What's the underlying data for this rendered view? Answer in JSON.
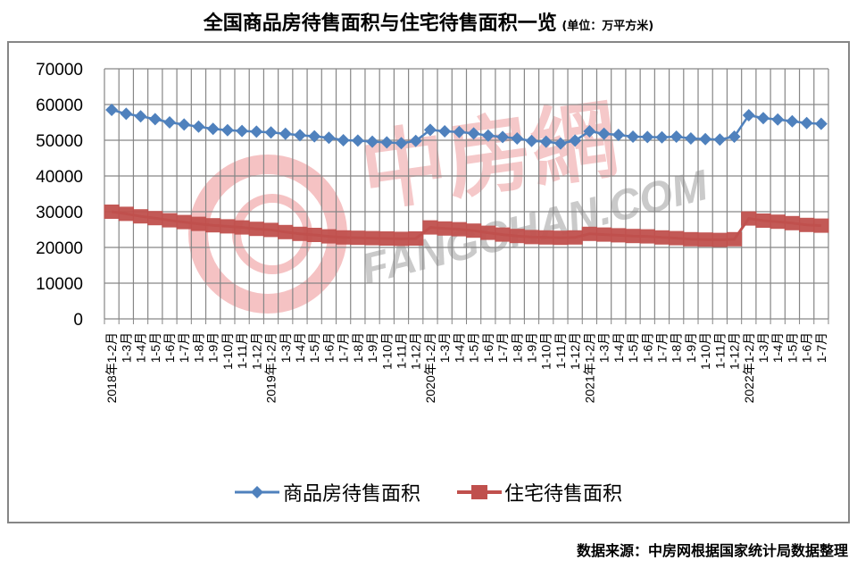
{
  "header": {
    "title": "全国商品房待售面积与住宅待售面积一览",
    "unit": "(单位：万平方米)"
  },
  "footer": {
    "source": "数据来源：中房网根据国家统计局数据整理"
  },
  "watermark": {
    "logo_text": "中房網",
    "domain_text": "FANGCHAN.COM"
  },
  "colors": {
    "series1": "#4F81BD",
    "series2": "#C0504D",
    "grid": "#868686",
    "watermark_red": "#E8787A",
    "watermark_gray": "#A0A0A0"
  },
  "chart_data": {
    "type": "line",
    "title": "全国商品房待售面积与住宅待售面积一览 (单位：万平方米)",
    "xlabel": "",
    "ylabel": "",
    "ylim": [
      0,
      70000
    ],
    "yticks": [
      0,
      10000,
      20000,
      30000,
      40000,
      50000,
      60000,
      70000
    ],
    "grid": true,
    "legend_position": "bottom",
    "categories": [
      "2018年1-2月",
      "1-3月",
      "1-4月",
      "1-5月",
      "1-6月",
      "1-7月",
      "1-8月",
      "1-9月",
      "1-10月",
      "1-11月",
      "1-12月",
      "2019年1-2月",
      "1-3月",
      "1-4月",
      "1-5月",
      "1-6月",
      "1-7月",
      "1-8月",
      "1-9月",
      "1-10月",
      "1-11月",
      "1-12月",
      "2020年1-2月",
      "1-3月",
      "1-4月",
      "1-5月",
      "1-6月",
      "1-7月",
      "1-8月",
      "1-9月",
      "1-10月",
      "1-11月",
      "1-12月",
      "2021年1-2月",
      "1-3月",
      "1-4月",
      "1-5月",
      "1-6月",
      "1-7月",
      "1-8月",
      "1-9月",
      "1-10月",
      "1-11月",
      "1-12月",
      "2022年1-2月",
      "1-3月",
      "1-4月",
      "1-5月",
      "1-6月",
      "1-7月"
    ],
    "series": [
      {
        "name": "商品房待售面积",
        "marker": "diamond",
        "values": [
          58500,
          57400,
          56700,
          55900,
          55000,
          54400,
          53800,
          53200,
          52800,
          52600,
          52400,
          52200,
          51800,
          51400,
          51100,
          50700,
          50000,
          49900,
          49600,
          49400,
          49200,
          49800,
          52900,
          52500,
          52300,
          51900,
          51300,
          50900,
          50500,
          49800,
          49600,
          49100,
          49900,
          52500,
          51800,
          51500,
          51000,
          50900,
          50800,
          51000,
          50500,
          50300,
          50200,
          51000,
          57000,
          56200,
          55800,
          55300,
          54800,
          54600
        ]
      },
      {
        "name": "住宅待售面积",
        "marker": "square",
        "values": [
          30000,
          29400,
          28700,
          28200,
          27600,
          27100,
          26600,
          26200,
          25900,
          25600,
          25200,
          24900,
          24300,
          23800,
          23500,
          23100,
          22800,
          22700,
          22600,
          22500,
          22400,
          22500,
          25600,
          25300,
          25100,
          24700,
          24100,
          23600,
          23200,
          22900,
          22800,
          22700,
          22800,
          23800,
          23600,
          23400,
          23200,
          23100,
          22800,
          22600,
          22300,
          22200,
          22100,
          22300,
          28100,
          27500,
          27200,
          26800,
          26300,
          26100
        ]
      }
    ]
  },
  "legend": {
    "items": [
      {
        "label": "商品房待售面积"
      },
      {
        "label": "住宅待售面积"
      }
    ]
  }
}
